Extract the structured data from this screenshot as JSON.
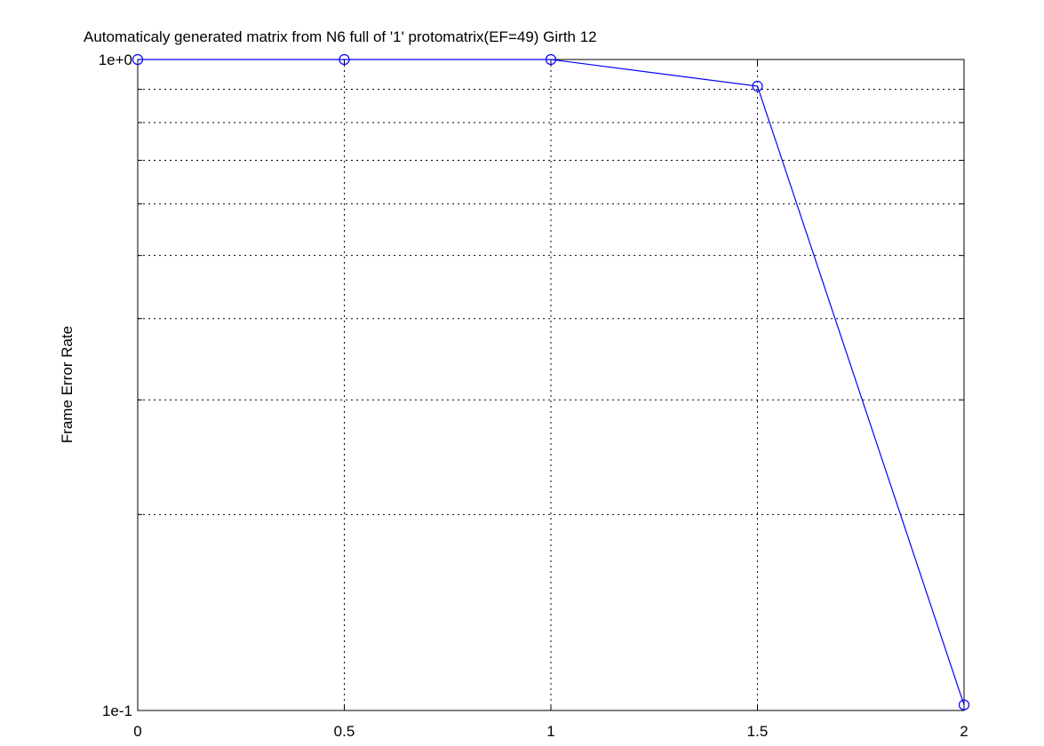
{
  "chart_data": {
    "type": "line",
    "title": "Automaticaly generated matrix from N6 full of '1' protomatrix(EF=49) Girth 12",
    "xlabel": "",
    "ylabel": "Frame Error Rate",
    "x_scale": "linear",
    "y_scale": "log",
    "xlim": [
      0,
      2
    ],
    "ylim": [
      0.1,
      1
    ],
    "grid": true,
    "x_ticks": [
      0,
      0.5,
      1,
      1.5,
      2
    ],
    "x_tick_labels": [
      "0",
      "0.5",
      "1",
      "1.5",
      "2"
    ],
    "y_ticks": [
      0.1,
      1
    ],
    "y_tick_labels": [
      "1e-1",
      "1e+0"
    ],
    "y_minor_grid": [
      0.2,
      0.3,
      0.4,
      0.5,
      0.6,
      0.7,
      0.8,
      0.9
    ],
    "series": [
      {
        "x": [
          0,
          0.5,
          1,
          1.5,
          2
        ],
        "values": [
          1.0,
          1.0,
          1.0,
          0.91,
          0.102
        ],
        "color": "#0000ff",
        "marker": "circle"
      }
    ]
  }
}
